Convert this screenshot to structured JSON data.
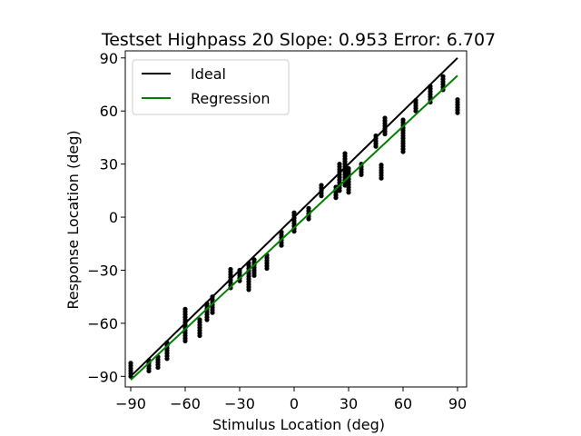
{
  "chart_data": {
    "type": "scatter",
    "title": "Testset Highpass 20 Slope: 0.953 Error: 6.707",
    "xlabel": "Stimulus Location (deg)",
    "ylabel": "Response Location (deg)",
    "xlim": [
      -93,
      95
    ],
    "ylim": [
      -96,
      94
    ],
    "xticks": [
      -90,
      -60,
      -30,
      0,
      30,
      60,
      90
    ],
    "yticks": [
      -90,
      -60,
      -30,
      0,
      30,
      60,
      90
    ],
    "xtick_labels": [
      "−90",
      "−60",
      "−30",
      "0",
      "30",
      "60",
      "90"
    ],
    "ytick_labels": [
      "−90",
      "−60",
      "−30",
      "0",
      "30",
      "60",
      "90"
    ],
    "grid": false,
    "legend_position": "top-left",
    "colors": {
      "ideal": "#000000",
      "regression": "#008000",
      "points": "#000000"
    },
    "series": [
      {
        "name": "Ideal",
        "type": "line",
        "x": [
          -90,
          90
        ],
        "y": [
          -90,
          90
        ]
      },
      {
        "name": "Regression",
        "type": "line",
        "x": [
          -90,
          90
        ],
        "y": [
          -92,
          80
        ]
      },
      {
        "type": "scatter",
        "points": [
          {
            "x": -90,
            "y_min": -90,
            "y_max": -82
          },
          {
            "x": -80,
            "y_min": -87,
            "y_max": -81
          },
          {
            "x": -75,
            "y_min": -85,
            "y_max": -78
          },
          {
            "x": -70,
            "y_min": -80,
            "y_max": -70
          },
          {
            "x": -60,
            "y_min": -70,
            "y_max": -52
          },
          {
            "x": -52,
            "y_min": -67,
            "y_max": -57
          },
          {
            "x": -48,
            "y_min": -58,
            "y_max": -48
          },
          {
            "x": -45,
            "y_min": -54,
            "y_max": -44
          },
          {
            "x": -35,
            "y_min": -40,
            "y_max": -29
          },
          {
            "x": -30,
            "y_min": -36,
            "y_max": -29
          },
          {
            "x": -25,
            "y_min": -41,
            "y_max": -25
          },
          {
            "x": -22,
            "y_min": -33,
            "y_max": -24
          },
          {
            "x": -15,
            "y_min": -29,
            "y_max": -21
          },
          {
            "x": -7,
            "y_min": -16,
            "y_max": -8
          },
          {
            "x": 0,
            "y_min": -8,
            "y_max": 3
          },
          {
            "x": 8,
            "y_min": -1,
            "y_max": 6
          },
          {
            "x": 15,
            "y_min": 12,
            "y_max": 19
          },
          {
            "x": 23,
            "y_min": 11,
            "y_max": 18
          },
          {
            "x": 25,
            "y_min": 15,
            "y_max": 30
          },
          {
            "x": 28,
            "y_min": 18,
            "y_max": 36
          },
          {
            "x": 30,
            "y_min": 14,
            "y_max": 28
          },
          {
            "x": 37,
            "y_min": 24,
            "y_max": 31
          },
          {
            "x": 45,
            "y_min": 40,
            "y_max": 47
          },
          {
            "x": 48,
            "y_min": 22,
            "y_max": 30
          },
          {
            "x": 50,
            "y_min": 47,
            "y_max": 56
          },
          {
            "x": 60,
            "y_min": 37,
            "y_max": 55
          },
          {
            "x": 67,
            "y_min": 60,
            "y_max": 66
          },
          {
            "x": 75,
            "y_min": 65,
            "y_max": 74
          },
          {
            "x": 82,
            "y_min": 72,
            "y_max": 80
          },
          {
            "x": 90,
            "y_min": 59,
            "y_max": 67
          }
        ]
      }
    ]
  }
}
